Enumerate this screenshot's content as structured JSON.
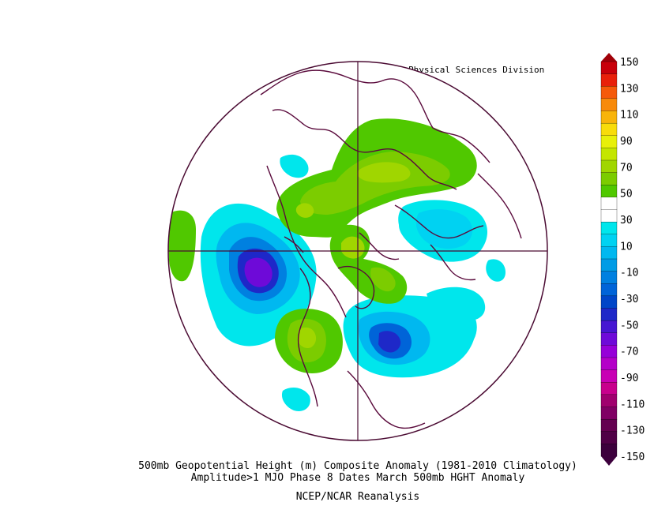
{
  "credit": "NOAA/ESRL Physical Sciences Division",
  "title_line1": "500mb Geopotential Height (m) Composite Anomaly (1981-2010 Climatology)",
  "title_line2": "Amplitude>1 MJO Phase 8 Dates March 500mb HGHT Anomaly",
  "source": "NCEP/NCAR Reanalysis",
  "projection": "north-polar-stereographic",
  "colorbar": {
    "labels": [
      "150",
      "130",
      "110",
      "90",
      "70",
      "50",
      "30",
      "10",
      "-10",
      "-30",
      "-50",
      "-70",
      "-90",
      "-110",
      "-130",
      "-150"
    ],
    "colors": [
      "#c8000a",
      "#e8200a",
      "#f55a0a",
      "#f88a0a",
      "#f8b40a",
      "#f8dc0a",
      "#e8f00a",
      "#c4e600",
      "#a0d600",
      "#7ccc00",
      "#50c800",
      "#ffffff",
      "#ffffff",
      "#00e6ec",
      "#00d2f2",
      "#00b8f0",
      "#009ce6",
      "#0080e0",
      "#0064d8",
      "#0046c8",
      "#1e28c8",
      "#4616d2",
      "#6e0ad8",
      "#9600d8",
      "#b400c8",
      "#c800b4",
      "#c8008c",
      "#a0006e",
      "#800064",
      "#640050",
      "#500046",
      "#3c003c"
    ],
    "top_arrow_color": "#a00008",
    "bottom_arrow_color": "#3c003c"
  },
  "features": [
    {
      "name": "positive-anomaly-eurasia",
      "value": 30
    },
    {
      "name": "positive-anomaly-greenland",
      "value": 30
    },
    {
      "name": "positive-anomaly-western-us",
      "value": 30
    },
    {
      "name": "positive-anomaly-north-atlantic",
      "value": 10
    },
    {
      "name": "negative-anomaly-north-pacific",
      "value": -70
    },
    {
      "name": "negative-anomaly-eastern-canada",
      "value": -50
    },
    {
      "name": "negative-anomaly-central-asia",
      "value": -30
    }
  ]
}
